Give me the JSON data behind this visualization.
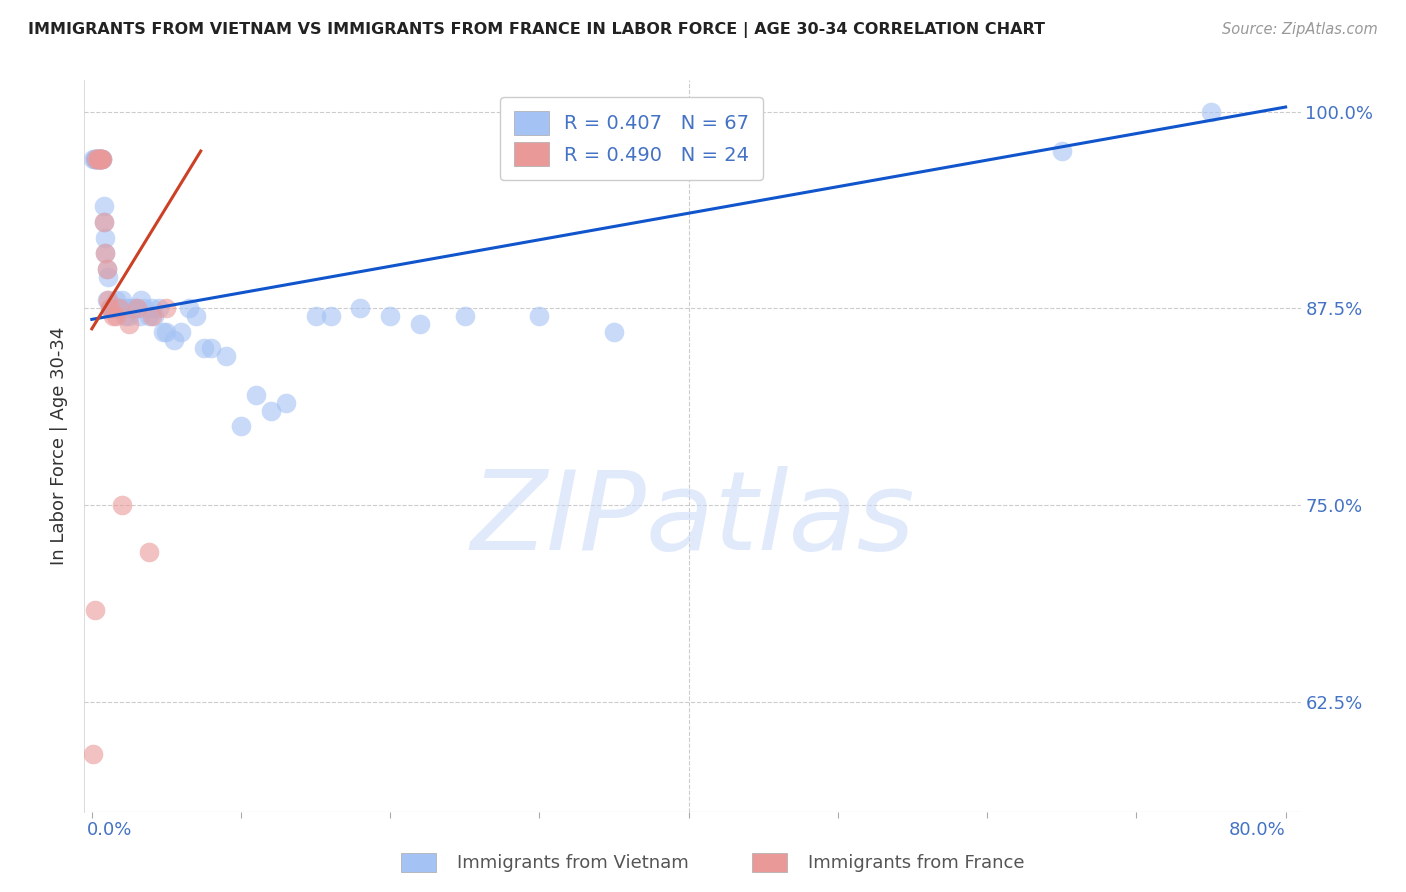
{
  "title": "IMMIGRANTS FROM VIETNAM VS IMMIGRANTS FROM FRANCE IN LABOR FORCE | AGE 30-34 CORRELATION CHART",
  "source": "Source: ZipAtlas.com",
  "ylabel": "In Labor Force | Age 30-34",
  "ylim": [
    0.555,
    1.02
  ],
  "xlim": [
    -0.005,
    0.81
  ],
  "blue_color": "#a4c2f4",
  "pink_color": "#ea9999",
  "blue_line_color": "#1155cc",
  "pink_line_color": "#cc4125",
  "tick_color": "#4472c4",
  "grid_color": "#cccccc",
  "background_color": "#ffffff",
  "watermark": "ZIPatlas",
  "blue_line_x": [
    0.0,
    0.8
  ],
  "blue_line_y": [
    0.868,
    1.003
  ],
  "pink_line_x": [
    0.0,
    0.073
  ],
  "pink_line_y": [
    0.862,
    0.975
  ],
  "blue_x": [
    0.001,
    0.002,
    0.002,
    0.003,
    0.003,
    0.003,
    0.004,
    0.004,
    0.005,
    0.005,
    0.005,
    0.006,
    0.006,
    0.007,
    0.007,
    0.008,
    0.008,
    0.009,
    0.009,
    0.01,
    0.01,
    0.011,
    0.012,
    0.013,
    0.014,
    0.015,
    0.016,
    0.017,
    0.018,
    0.02,
    0.022,
    0.023,
    0.025,
    0.025,
    0.027,
    0.028,
    0.03,
    0.032,
    0.033,
    0.035,
    0.038,
    0.04,
    0.042,
    0.045,
    0.048,
    0.05,
    0.055,
    0.06,
    0.065,
    0.07,
    0.075,
    0.08,
    0.09,
    0.1,
    0.11,
    0.12,
    0.13,
    0.15,
    0.16,
    0.18,
    0.2,
    0.22,
    0.25,
    0.3,
    0.35,
    0.65,
    0.75
  ],
  "blue_y": [
    0.97,
    0.97,
    0.97,
    0.97,
    0.97,
    0.97,
    0.97,
    0.97,
    0.97,
    0.97,
    0.97,
    0.97,
    0.97,
    0.97,
    0.97,
    0.93,
    0.94,
    0.92,
    0.91,
    0.9,
    0.88,
    0.895,
    0.875,
    0.875,
    0.875,
    0.875,
    0.88,
    0.875,
    0.875,
    0.88,
    0.87,
    0.875,
    0.87,
    0.875,
    0.875,
    0.875,
    0.875,
    0.87,
    0.88,
    0.875,
    0.87,
    0.875,
    0.87,
    0.875,
    0.86,
    0.86,
    0.855,
    0.86,
    0.875,
    0.87,
    0.85,
    0.85,
    0.845,
    0.8,
    0.82,
    0.81,
    0.815,
    0.87,
    0.87,
    0.875,
    0.87,
    0.865,
    0.87,
    0.87,
    0.86,
    0.975,
    1.0
  ],
  "pink_x": [
    0.001,
    0.002,
    0.003,
    0.004,
    0.005,
    0.005,
    0.006,
    0.006,
    0.006,
    0.007,
    0.008,
    0.009,
    0.01,
    0.011,
    0.012,
    0.014,
    0.016,
    0.018,
    0.02,
    0.025,
    0.03,
    0.038,
    0.04,
    0.05
  ],
  "pink_y": [
    0.592,
    0.683,
    0.97,
    0.97,
    0.97,
    0.97,
    0.97,
    0.97,
    0.97,
    0.97,
    0.93,
    0.91,
    0.9,
    0.88,
    0.875,
    0.87,
    0.87,
    0.875,
    0.75,
    0.865,
    0.875,
    0.72,
    0.87,
    0.875
  ],
  "y_tick_vals": [
    0.625,
    0.75,
    0.875,
    1.0
  ],
  "y_tick_labels": [
    "62.5%",
    "75.0%",
    "87.5%",
    "100.0%"
  ],
  "x_tick_vals": [
    0.0,
    0.1,
    0.2,
    0.3,
    0.4,
    0.5,
    0.6,
    0.7,
    0.8
  ],
  "bottom_legend_label1": "Immigrants from Vietnam",
  "bottom_legend_label2": "Immigrants from France"
}
